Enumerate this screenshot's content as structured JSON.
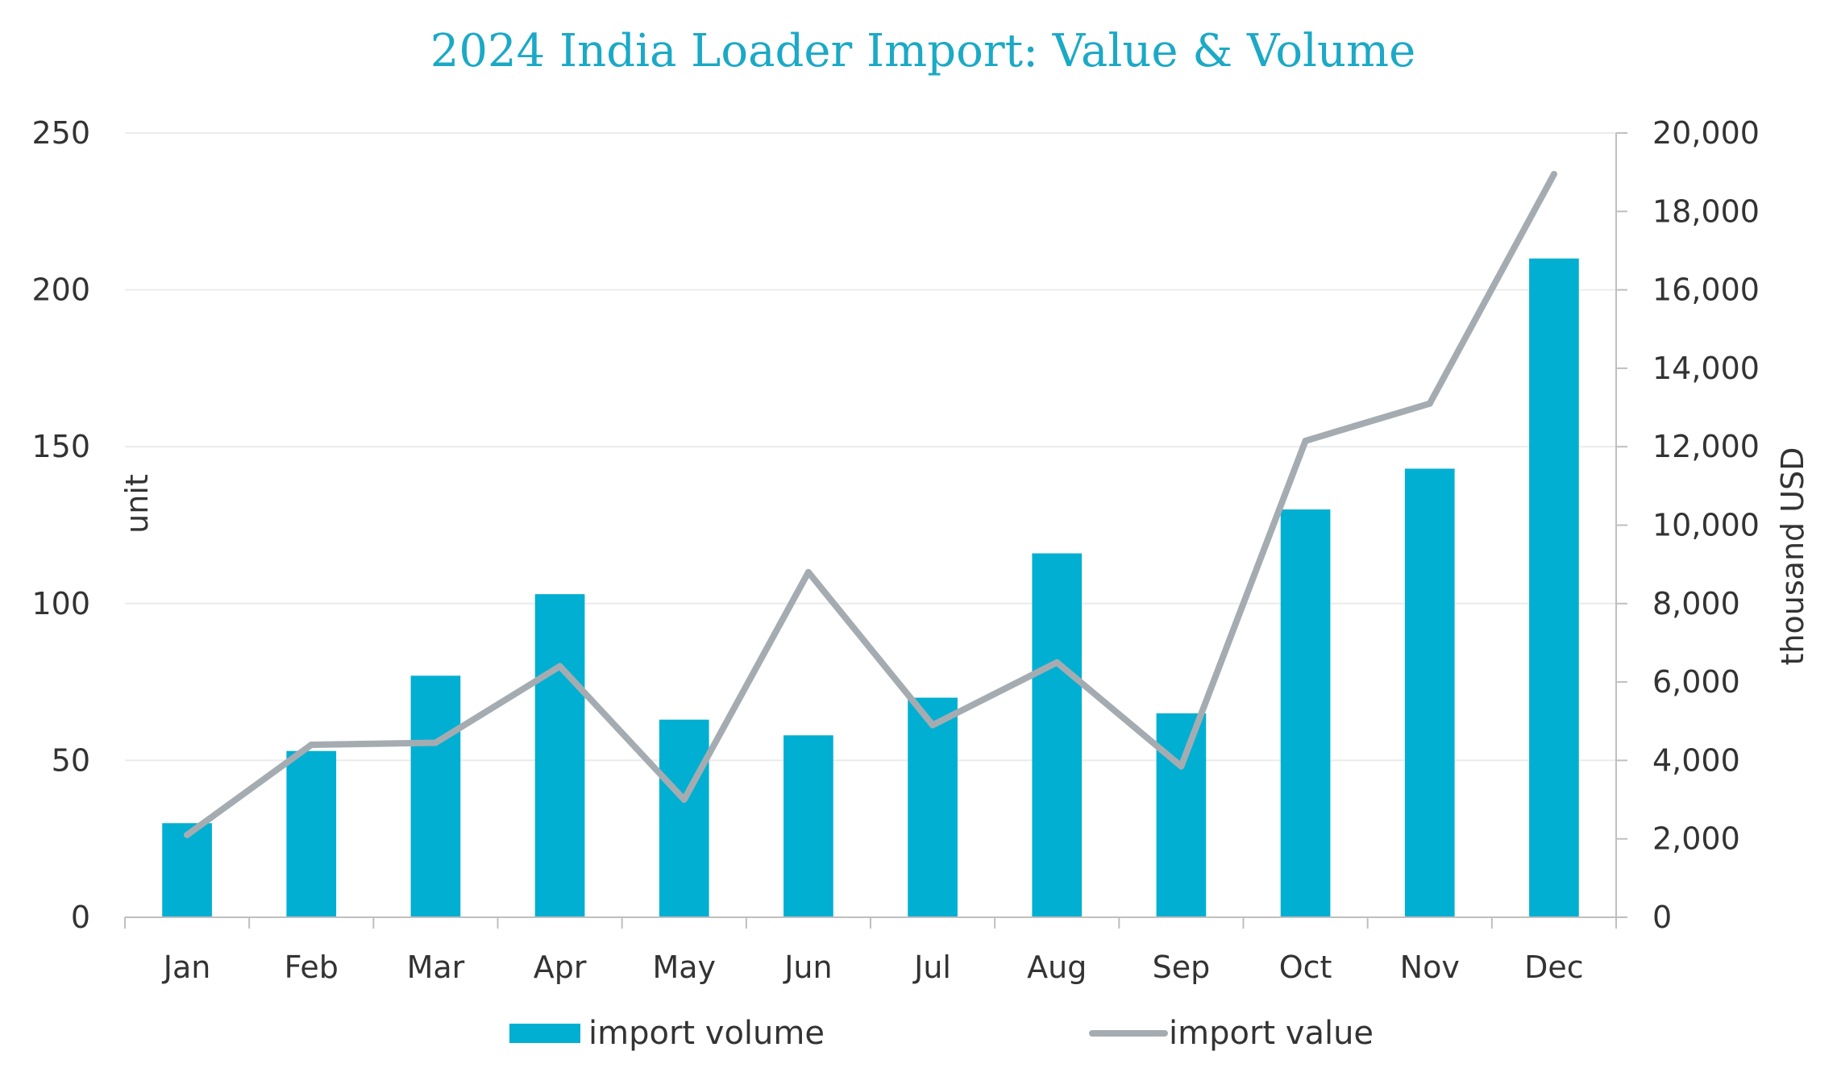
{
  "colors": {
    "title": "#1ba9c6",
    "bar": "#00afd1",
    "line": "#a5acb1",
    "grid": "#ebebeb",
    "axis": "#bfbfbf",
    "text": "#333333"
  },
  "chart_data": {
    "type": "bar",
    "title": "2024 India Loader Import: Value & Volume",
    "categories": [
      "Jan",
      "Feb",
      "Mar",
      "Apr",
      "May",
      "Jun",
      "Jul",
      "Aug",
      "Sep",
      "Oct",
      "Nov",
      "Dec"
    ],
    "series": [
      {
        "name": "import volume",
        "type": "bar",
        "axis": "left",
        "values": [
          30,
          53,
          77,
          103,
          63,
          58,
          70,
          116,
          65,
          130,
          143,
          210
        ]
      },
      {
        "name": "import value",
        "type": "line",
        "axis": "right",
        "values": [
          2100,
          4400,
          4450,
          6400,
          3000,
          8800,
          4900,
          6500,
          3850,
          12150,
          13100,
          18950
        ]
      }
    ],
    "ylabel": "unit",
    "ylabel_right": "thousand USD",
    "ylim": [
      0,
      250
    ],
    "ylim_right": [
      0,
      20000
    ],
    "yticks": [
      "0",
      "50",
      "100",
      "150",
      "200",
      "250"
    ],
    "yticks_right": [
      "0",
      "2,000",
      "4,000",
      "6,000",
      "8,000",
      "10,000",
      "12,000",
      "14,000",
      "16,000",
      "18,000",
      "20,000"
    ],
    "grid": true,
    "legend_position": "bottom"
  }
}
